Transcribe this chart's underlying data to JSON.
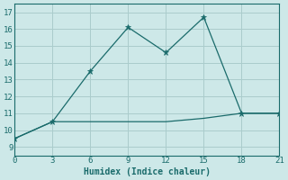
{
  "xlabel": "Humidex (Indice chaleur)",
  "background_color": "#cde8e8",
  "grid_color": "#aacccc",
  "line_color": "#1a6b6b",
  "xlim": [
    0,
    21
  ],
  "ylim": [
    8.5,
    17.5
  ],
  "xticks": [
    0,
    3,
    6,
    9,
    12,
    15,
    18,
    21
  ],
  "yticks": [
    9,
    10,
    11,
    12,
    13,
    14,
    15,
    16,
    17
  ],
  "line1_x": [
    0,
    3,
    6,
    9,
    12,
    15,
    18,
    21
  ],
  "line1_y": [
    9.5,
    10.5,
    13.5,
    16.1,
    14.6,
    16.7,
    11.0,
    11.0
  ],
  "line2_x": [
    0,
    3,
    6,
    9,
    12,
    15,
    18,
    21
  ],
  "line2_y": [
    9.5,
    10.5,
    10.5,
    10.5,
    10.5,
    10.7,
    11.0,
    11.0
  ]
}
